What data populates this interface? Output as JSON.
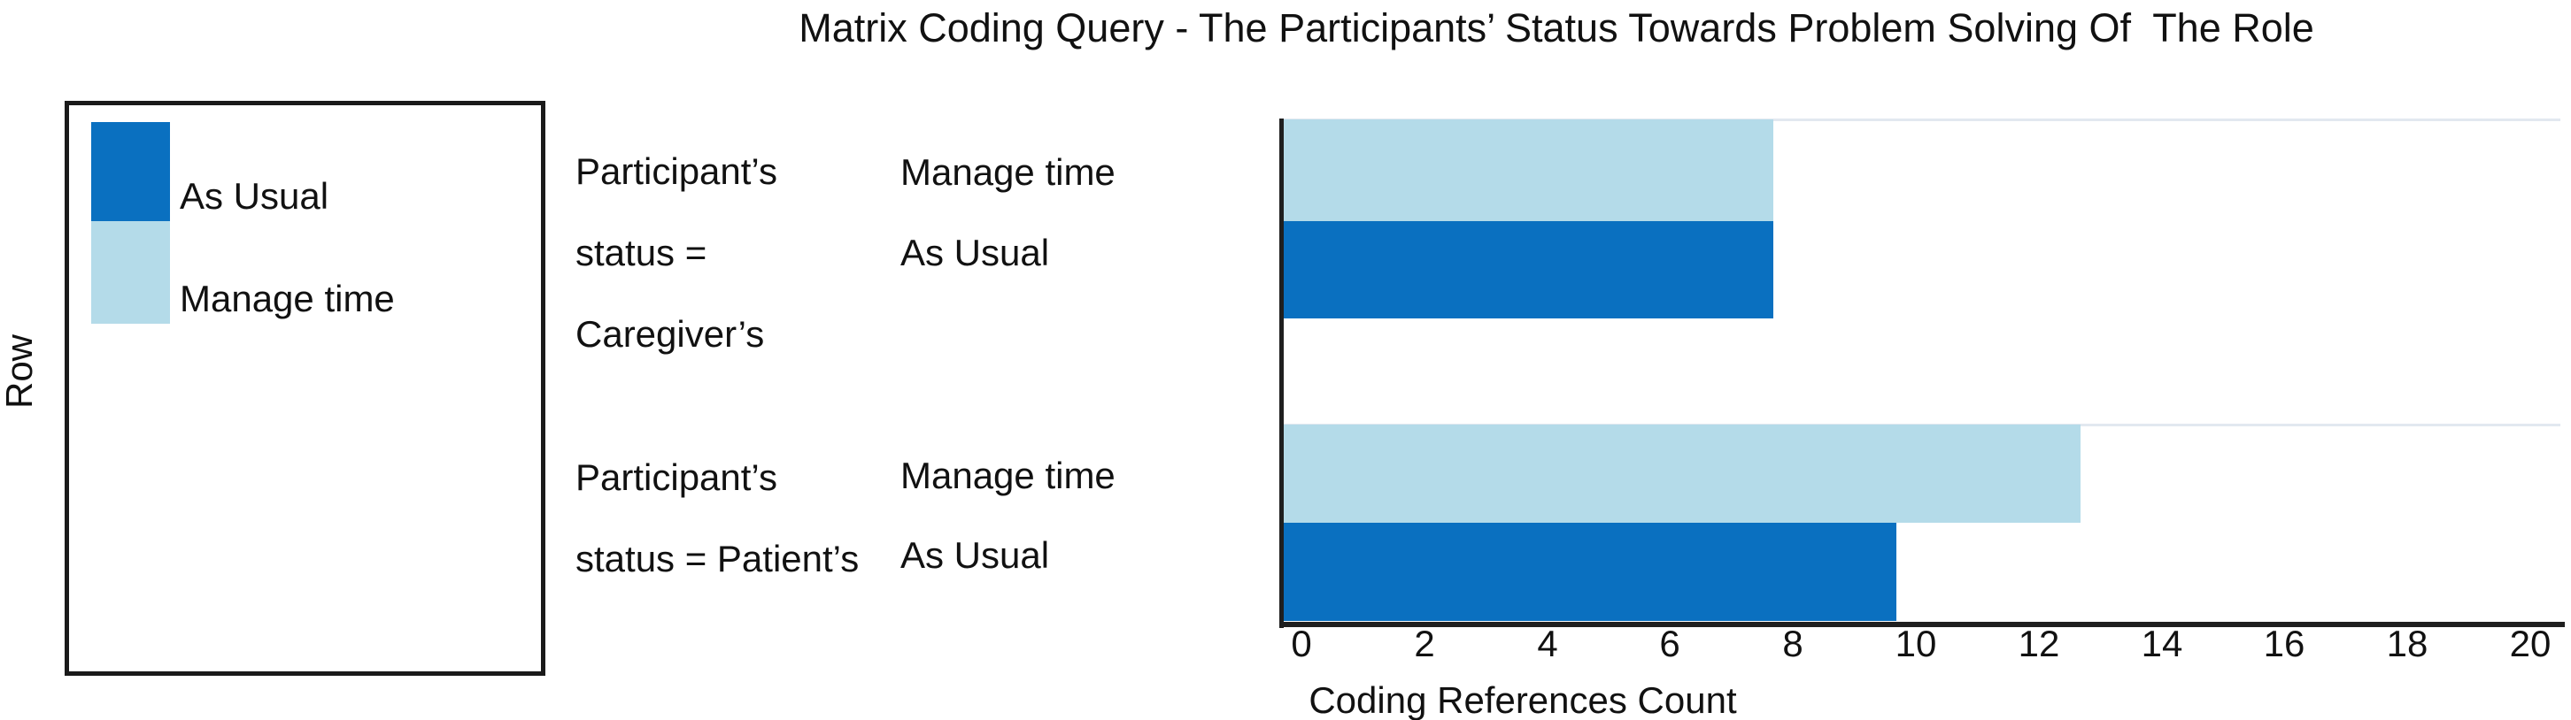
{
  "title": "Matrix Coding Query - The Participants’ Status Towards Problem Solving Of  The Role",
  "colors": {
    "dark_blue": "#0A70C0",
    "light_blue": "#B4DBE9",
    "axis": "#1F1F1F",
    "row_separator": "#E2E8F0",
    "text": "#111111"
  },
  "legend": {
    "axis_label": "Row",
    "items": [
      {
        "label": "As Usual",
        "color_key": "dark_blue"
      },
      {
        "label": "Manage time",
        "color_key": "light_blue"
      }
    ]
  },
  "chart_data": {
    "type": "bar",
    "orientation": "horizontal",
    "title": "Matrix Coding Query - The Participants’ Status Towards Problem Solving Of The Role",
    "xlabel": "Coding References Count",
    "ylabel": "Row",
    "xlim": [
      0,
      20
    ],
    "xticks": [
      0,
      2,
      4,
      6,
      8,
      10,
      12,
      14,
      16,
      18,
      20
    ],
    "grid": false,
    "legend_position": "left box",
    "categories": [
      "Participant’s status = Caregiver’s",
      "Participant’s status = Patient’s"
    ],
    "series": [
      {
        "name": "Manage time",
        "color_key": "light_blue",
        "values": [
          8,
          13
        ]
      },
      {
        "name": "As Usual",
        "color_key": "dark_blue",
        "values": [
          8,
          10
        ]
      }
    ],
    "groups": [
      {
        "label_lines": [
          "Participant’s",
          "status =",
          "Caregiver’s"
        ],
        "rows": [
          {
            "label": "Manage time",
            "series": "Manage time",
            "value": 8,
            "color_key": "light_blue"
          },
          {
            "label": "As Usual",
            "series": "As Usual",
            "value": 8,
            "color_key": "dark_blue"
          }
        ]
      },
      {
        "label_lines": [
          "Participant’s",
          "status = Patient’s"
        ],
        "rows": [
          {
            "label": "Manage time",
            "series": "Manage time",
            "value": 13,
            "color_key": "light_blue"
          },
          {
            "label": "As Usual",
            "series": "As Usual",
            "value": 10,
            "color_key": "dark_blue"
          }
        ]
      }
    ]
  }
}
